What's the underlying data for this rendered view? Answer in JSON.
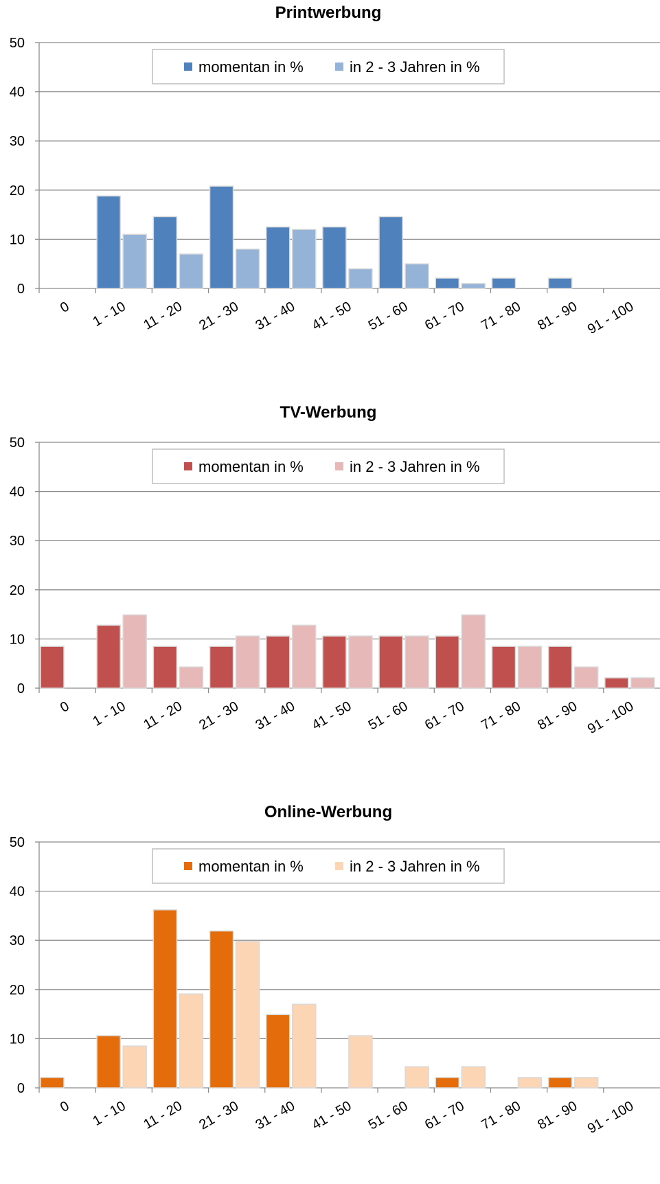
{
  "chart_data": [
    {
      "type": "bar",
      "title": "Printwerbung",
      "categories": [
        "0",
        "1 - 10",
        "11 - 20",
        "21 - 30",
        "31 - 40",
        "41 - 50",
        "51 - 60",
        "61 - 70",
        "71 - 80",
        "81 - 90",
        "91 - 100"
      ],
      "series": [
        {
          "name": "momentan in %",
          "color": "#4f81bd",
          "values": [
            0,
            18.8,
            14.6,
            20.8,
            12.5,
            12.5,
            14.6,
            2.1,
            2.1,
            2.1,
            0
          ]
        },
        {
          "name": "in 2 - 3 Jahren in %",
          "color": "#95b3d7",
          "values": [
            0,
            11.0,
            7.0,
            8.0,
            12.0,
            4.0,
            5.0,
            1.0,
            0,
            0,
            0
          ]
        }
      ],
      "ylim": [
        0,
        50
      ],
      "yticks": [
        0,
        10,
        20,
        30,
        40,
        50
      ],
      "grid": true,
      "legend": "top-center"
    },
    {
      "type": "bar",
      "title": "TV-Werbung",
      "categories": [
        "0",
        "1 - 10",
        "11 - 20",
        "21 - 30",
        "31 - 40",
        "41 - 50",
        "51 - 60",
        "61 - 70",
        "71 - 80",
        "81 - 90",
        "91 - 100"
      ],
      "series": [
        {
          "name": "momentan in %",
          "color": "#c0504d",
          "values": [
            8.5,
            12.8,
            8.5,
            8.5,
            10.6,
            10.6,
            10.6,
            10.6,
            8.5,
            8.5,
            2.1
          ]
        },
        {
          "name": "in 2 - 3 Jahren in %",
          "color": "#e6b9b8",
          "values": [
            0,
            14.9,
            4.3,
            10.6,
            12.8,
            10.6,
            10.6,
            14.9,
            8.5,
            4.3,
            2.1
          ]
        }
      ],
      "ylim": [
        0,
        50
      ],
      "yticks": [
        0,
        10,
        20,
        30,
        40,
        50
      ],
      "grid": true,
      "legend": "top-center"
    },
    {
      "type": "bar",
      "title": "Online-Werbung",
      "categories": [
        "0",
        "1 - 10",
        "11 - 20",
        "21 - 30",
        "31 - 40",
        "41 - 50",
        "51 - 60",
        "61 - 70",
        "71 - 80",
        "81 - 90",
        "91 - 100"
      ],
      "series": [
        {
          "name": "momentan in %",
          "color": "#e46c0a",
          "values": [
            2.1,
            10.6,
            36.2,
            31.9,
            14.9,
            0,
            0,
            2.1,
            0,
            2.1,
            0
          ]
        },
        {
          "name": "in 2 - 3 Jahren in %",
          "color": "#fcd5b4",
          "values": [
            0,
            8.5,
            19.1,
            29.8,
            17.0,
            10.6,
            4.3,
            4.3,
            2.1,
            2.1,
            0
          ]
        }
      ],
      "ylim": [
        0,
        50
      ],
      "yticks": [
        0,
        10,
        20,
        30,
        40,
        50
      ],
      "grid": true,
      "legend": "top-center"
    }
  ]
}
